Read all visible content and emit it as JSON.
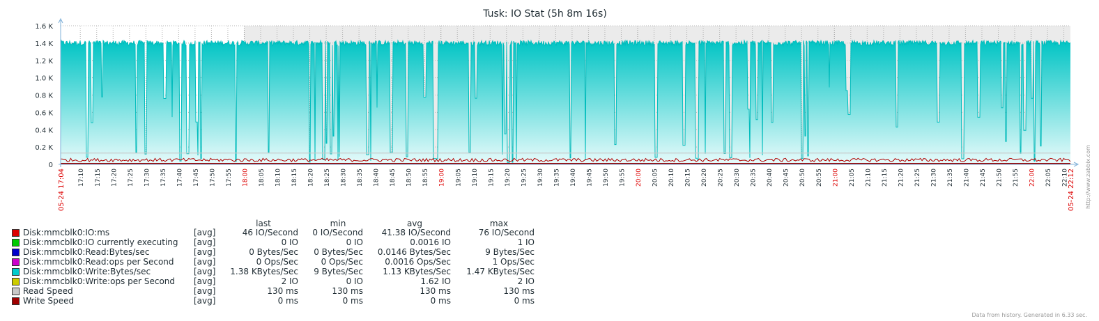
{
  "title": "Tusk: IO Stat (5h 8m 16s)",
  "footer": "Data from history. Generated in 6.33 sec.",
  "watermark": "http://www.zabbix.com",
  "chart_data": {
    "type": "area",
    "title": "Tusk: IO Stat (5h 8m 16s)",
    "xlabel": "",
    "ylabel": "",
    "ylim": [
      0,
      1600
    ],
    "y_ticks": [
      "0",
      "0.2 K",
      "0.4 K",
      "0.6 K",
      "0.8 K",
      "1.0 K",
      "1.2 K",
      "1.4 K",
      "1.6 K"
    ],
    "x_range_labels": [
      "05-24 17:04",
      "05-24 22:12"
    ],
    "x_ticks": [
      "17:10",
      "17:15",
      "17:20",
      "17:25",
      "17:30",
      "17:35",
      "17:40",
      "17:45",
      "17:50",
      "17:55",
      "18:00",
      "18:05",
      "18:10",
      "18:15",
      "18:20",
      "18:25",
      "18:30",
      "18:35",
      "18:40",
      "18:45",
      "18:50",
      "18:55",
      "19:00",
      "19:05",
      "19:10",
      "19:15",
      "19:20",
      "19:25",
      "19:30",
      "19:35",
      "19:40",
      "19:45",
      "19:50",
      "19:55",
      "20:00",
      "20:05",
      "20:10",
      "20:15",
      "20:20",
      "20:25",
      "20:30",
      "20:35",
      "20:40",
      "20:45",
      "20:50",
      "20:55",
      "21:00",
      "21:05",
      "21:10",
      "21:15",
      "21:20",
      "21:25",
      "21:30",
      "21:35",
      "21:40",
      "21:45",
      "21:50",
      "21:55",
      "22:00",
      "22:05",
      "22:10"
    ],
    "highlight_ticks": [
      "18:00",
      "19:00",
      "20:00",
      "21:00",
      "22:00"
    ],
    "series": [
      {
        "name": "Disk:mmcblk0:Write:Bytes/sec",
        "color": "#00C0C0",
        "style": "area",
        "typical": 1400,
        "min": 9,
        "max": 1470
      },
      {
        "name": "Disk:mmcblk0:IO:ms",
        "color": "#C80000",
        "style": "line",
        "typical": 41,
        "min": 0,
        "max": 76
      },
      {
        "name": "Read Speed",
        "color": "#C0C0C0",
        "style": "line",
        "constant": 130
      },
      {
        "name": "Write Speed",
        "color": "#960000",
        "style": "line",
        "constant": 0
      }
    ]
  },
  "legend": {
    "headers": {
      "last": "last",
      "min": "min",
      "avg": "avg",
      "max": "max"
    },
    "items": [
      {
        "name": "Disk:mmcblk0:IO:ms",
        "color": "#DD0000",
        "func": "[avg]",
        "last": "46 IO/Second",
        "min": "0 IO/Second",
        "avg": "41.38 IO/Second",
        "max": "76 IO/Second"
      },
      {
        "name": "Disk:mmcblk0:IO currently executing",
        "color": "#00CC00",
        "func": "[avg]",
        "last": "0 IO",
        "min": "0 IO",
        "avg": "0.0016 IO",
        "max": "1 IO"
      },
      {
        "name": "Disk:mmcblk0:Read:Bytes/sec",
        "color": "#0000CC",
        "func": "[avg]",
        "last": "0 Bytes/Sec",
        "min": "0 Bytes/Sec",
        "avg": "0.0146 Bytes/Sec",
        "max": "9 Bytes/Sec"
      },
      {
        "name": "Disk:mmcblk0:Read:ops per Second",
        "color": "#CC00CC",
        "func": "[avg]",
        "last": "0 Ops/Sec",
        "min": "0 Ops/Sec",
        "avg": "0.0016 Ops/Sec",
        "max": "1 Ops/Sec"
      },
      {
        "name": "Disk:mmcblk0:Write:Bytes/sec",
        "color": "#00CCCC",
        "func": "[avg]",
        "last": "1.38 KBytes/Sec",
        "min": "9 Bytes/Sec",
        "avg": "1.13 KBytes/Sec",
        "max": "1.47 KBytes/Sec"
      },
      {
        "name": "Disk:mmcblk0:Write:ops per Second",
        "color": "#CCCC00",
        "func": "[avg]",
        "last": "2 IO",
        "min": "0 IO",
        "avg": "1.62 IO",
        "max": "2 IO"
      },
      {
        "name": "Read Speed",
        "color": "#C8C8C8",
        "func": "[avg]",
        "last": "130 ms",
        "min": "130 ms",
        "avg": "130 ms",
        "max": "130 ms"
      },
      {
        "name": "Write Speed",
        "color": "#A00000",
        "func": "[avg]",
        "last": "0 ms",
        "min": "0 ms",
        "avg": "0 ms",
        "max": "0 ms"
      }
    ]
  }
}
